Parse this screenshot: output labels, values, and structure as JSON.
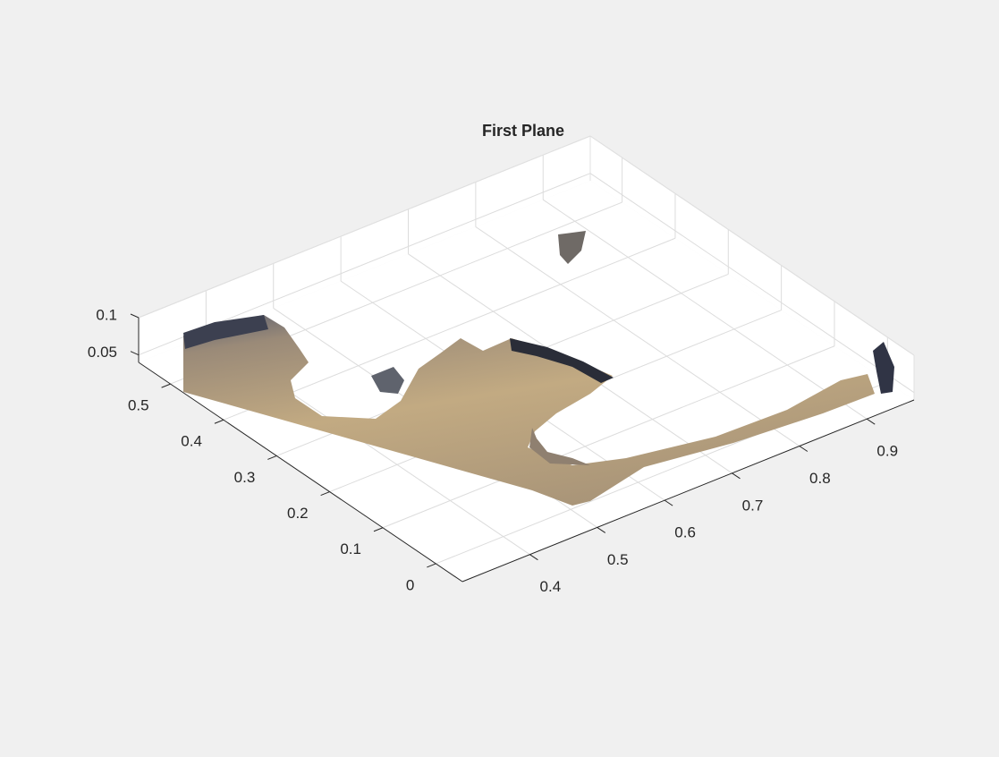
{
  "chart_data": {
    "type": "pointcloud3d",
    "title": "First Plane",
    "xlim": [
      0.3,
      0.97
    ],
    "xticks": [
      0.4,
      0.5,
      0.6,
      0.7,
      0.8,
      0.9
    ],
    "ylim": [
      -0.05,
      0.56
    ],
    "yticks": [
      0,
      0.1,
      0.2,
      0.3,
      0.4,
      0.5
    ],
    "zlim": [
      0.04,
      0.1
    ],
    "zticks": [
      0.05,
      0.1
    ],
    "grid": true
  }
}
